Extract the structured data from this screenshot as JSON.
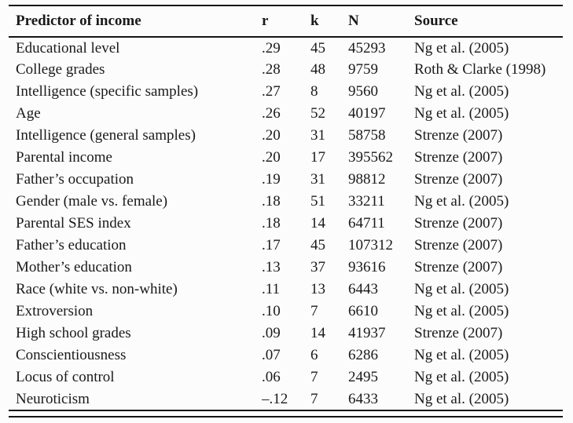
{
  "colors": {
    "background": "#fcfcfc",
    "text": "#1a1a1a",
    "rule": "#141414"
  },
  "table": {
    "columns": [
      {
        "key": "predictor",
        "label": "Predictor of income"
      },
      {
        "key": "r",
        "label": "r"
      },
      {
        "key": "k",
        "label": "k"
      },
      {
        "key": "n",
        "label": "N"
      },
      {
        "key": "source",
        "label": "Source"
      }
    ],
    "rows": [
      {
        "predictor": "Educational level",
        "r": ".29",
        "k": "45",
        "n": "45293",
        "source": "Ng et al. (2005)"
      },
      {
        "predictor": "College grades",
        "r": ".28",
        "k": "48",
        "n": "9759",
        "source": "Roth & Clarke (1998)"
      },
      {
        "predictor": "Intelligence (specific samples)",
        "r": ".27",
        "k": "8",
        "n": "9560",
        "source": "Ng et al. (2005)"
      },
      {
        "predictor": "Age",
        "r": ".26",
        "k": "52",
        "n": "40197",
        "source": "Ng et al. (2005)"
      },
      {
        "predictor": "Intelligence (general samples)",
        "r": ".20",
        "k": "31",
        "n": "58758",
        "source": "Strenze (2007)"
      },
      {
        "predictor": "Parental income",
        "r": ".20",
        "k": "17",
        "n": "395562",
        "source": "Strenze (2007)"
      },
      {
        "predictor": "Father’s occupation",
        "r": ".19",
        "k": "31",
        "n": "98812",
        "source": "Strenze (2007)"
      },
      {
        "predictor": "Gender (male vs. female)",
        "r": ".18",
        "k": "51",
        "n": "33211",
        "source": "Ng et al. (2005)"
      },
      {
        "predictor": "Parental SES index",
        "r": ".18",
        "k": "14",
        "n": "64711",
        "source": "Strenze (2007)"
      },
      {
        "predictor": "Father’s education",
        "r": ".17",
        "k": "45",
        "n": "107312",
        "source": "Strenze (2007)"
      },
      {
        "predictor": "Mother’s education",
        "r": ".13",
        "k": "37",
        "n": "93616",
        "source": "Strenze (2007)"
      },
      {
        "predictor": "Race (white vs. non-white)",
        "r": ".11",
        "k": "13",
        "n": "6443",
        "source": "Ng et al. (2005)"
      },
      {
        "predictor": "Extroversion",
        "r": ".10",
        "k": "7",
        "n": "6610",
        "source": "Ng et al. (2005)"
      },
      {
        "predictor": "High school grades",
        "r": ".09",
        "k": "14",
        "n": "41937",
        "source": "Strenze (2007)"
      },
      {
        "predictor": "Conscientiousness",
        "r": ".07",
        "k": "6",
        "n": "6286",
        "source": "Ng et al. (2005)"
      },
      {
        "predictor": "Locus of control",
        "r": ".06",
        "k": "7",
        "n": "2495",
        "source": "Ng et al. (2005)"
      },
      {
        "predictor": "Neuroticism",
        "r": "–.12",
        "k": "7",
        "n": "6433",
        "source": "Ng et al. (2005)"
      }
    ]
  }
}
